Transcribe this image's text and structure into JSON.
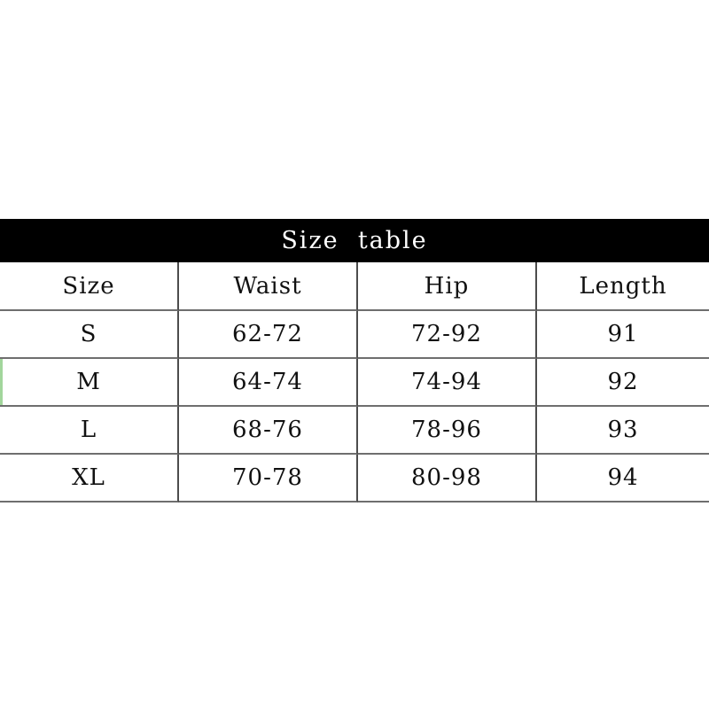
{
  "chart_data": {
    "type": "table",
    "title": "Size  table",
    "columns": [
      "Size",
      "Waist",
      "Hip",
      "Length"
    ],
    "rows": [
      [
        "S",
        "62-72",
        "72-92",
        "91"
      ],
      [
        "M",
        "64-74",
        "74-94",
        "92"
      ],
      [
        "L",
        "68-76",
        "78-96",
        "93"
      ],
      [
        "XL",
        "70-78",
        "80-98",
        "94"
      ]
    ],
    "layout_hints": {
      "title_bar": "black full-width bar with white centered text",
      "grid": "horizontal gray rules between all rows, vertical gray dividers between columns, no outer left/right border",
      "highlight": "thin green strip at far-left edge of row M"
    }
  },
  "colors": {
    "title_bar_bg": "#000000",
    "title_text": "#ffffff",
    "cell_text": "#111111",
    "horizontal_rule": "#6e6e6e",
    "vertical_rule": "#4d4d4d",
    "highlight_green": "#a2d69c",
    "page_bg": "#ffffff"
  },
  "table": {
    "title": "Size  table",
    "headers": [
      "Size",
      "Waist",
      "Hip",
      "Length"
    ],
    "rows": [
      {
        "size": "S",
        "waist": "62-72",
        "hip": "72-92",
        "length": "91"
      },
      {
        "size": "M",
        "waist": "64-74",
        "hip": "74-94",
        "length": "92"
      },
      {
        "size": "L",
        "waist": "68-76",
        "hip": "78-96",
        "length": "93"
      },
      {
        "size": "XL",
        "waist": "70-78",
        "hip": "80-98",
        "length": "94"
      }
    ]
  }
}
